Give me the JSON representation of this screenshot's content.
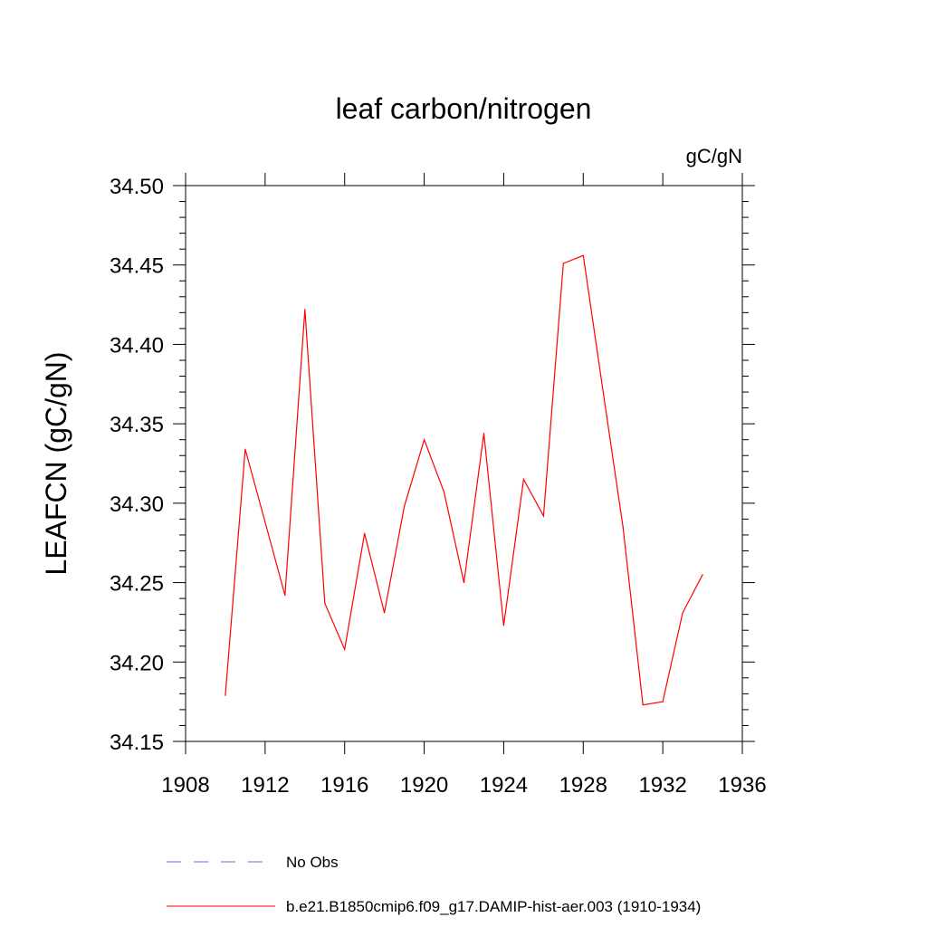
{
  "chart_data": {
    "type": "line",
    "title": "leaf carbon/nitrogen",
    "units_label": "gC/gN",
    "ylabel": "LEAFCN  (gC/gN)",
    "xlabel": "",
    "xlim": [
      1908,
      1936
    ],
    "ylim": [
      34.15,
      34.5
    ],
    "x_ticks": [
      1908,
      1912,
      1916,
      1920,
      1924,
      1928,
      1932,
      1936
    ],
    "y_ticks": [
      "34.15",
      "34.20",
      "34.25",
      "34.30",
      "34.35",
      "34.40",
      "34.45",
      "34.50"
    ],
    "grid": false,
    "legend_position": "bottom",
    "series": [
      {
        "name": "b.e21.B1850cmip6.f09_g17.DAMIP-hist-aer.003 (1910-1934)",
        "color": "#ff0000",
        "style": "solid",
        "x": [
          1910,
          1911,
          1912,
          1913,
          1914,
          1915,
          1916,
          1917,
          1918,
          1919,
          1920,
          1921,
          1922,
          1923,
          1924,
          1925,
          1926,
          1927,
          1928,
          1929,
          1930,
          1931,
          1932,
          1933,
          1934
        ],
        "y": [
          34.179,
          34.334,
          34.288,
          34.242,
          34.422,
          34.237,
          34.208,
          34.281,
          34.231,
          34.298,
          34.34,
          34.307,
          34.25,
          34.344,
          34.223,
          34.315,
          34.292,
          34.451,
          34.456,
          34.37,
          34.285,
          34.173,
          34.175,
          34.231,
          34.255
        ]
      }
    ],
    "legend_entries": [
      {
        "label": "No Obs",
        "color": "#6f6fd6",
        "style": "dashed"
      },
      {
        "label": "b.e21.B1850cmip6.f09_g17.DAMIP-hist-aer.003 (1910-1934)",
        "color": "#ff0000",
        "style": "solid"
      }
    ]
  }
}
